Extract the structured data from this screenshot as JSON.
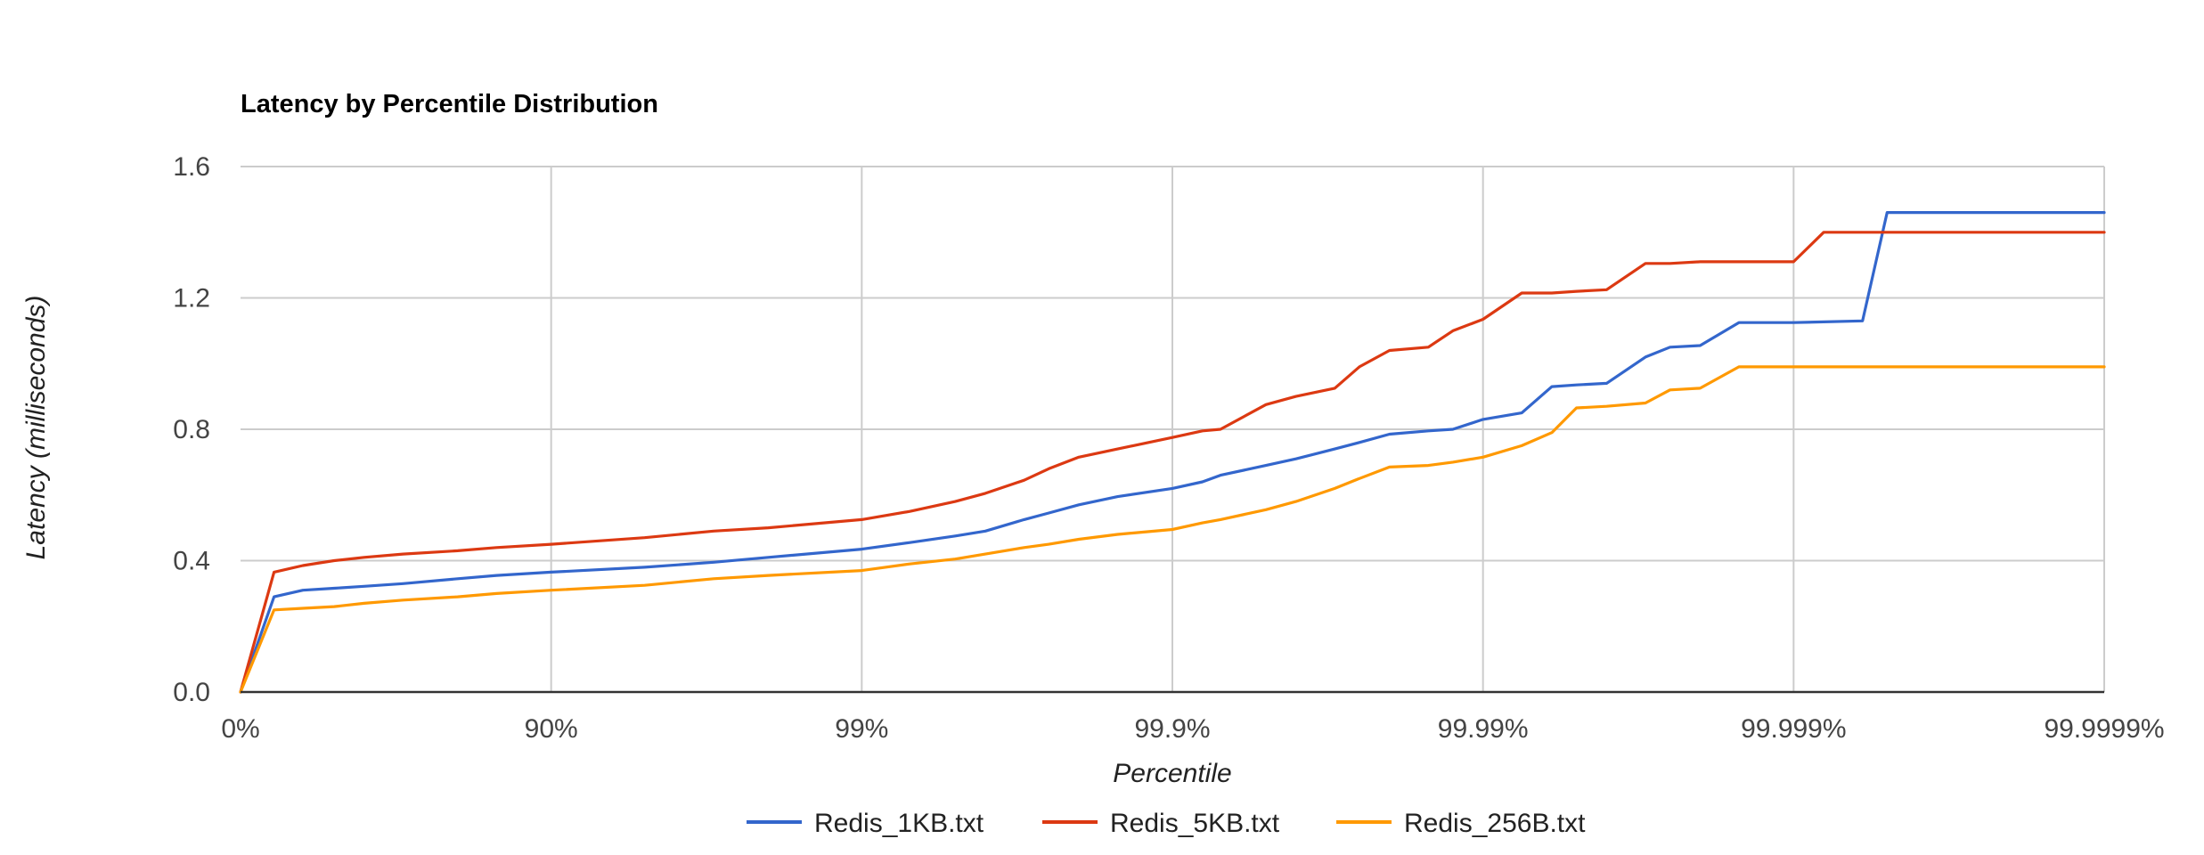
{
  "chart_data": {
    "type": "line",
    "title": "Latency by Percentile Distribution",
    "xlabel": "Percentile",
    "ylabel": "Latency (milliseconds)",
    "x_scale": "log-inverse-percentile",
    "x_ticks": [
      "0%",
      "90%",
      "99%",
      "99.9%",
      "99.99%",
      "99.999%",
      "99.9999%"
    ],
    "y_ticks": [
      "0.0",
      "0.4",
      "0.8",
      "1.2",
      "1.6"
    ],
    "ylim": [
      0,
      1.6
    ],
    "grid": true,
    "legend_position": "bottom",
    "series": [
      {
        "name": "Redis_1KB.txt",
        "color": "#3366cc",
        "points": [
          [
            "0%",
            0.0
          ],
          [
            "22%",
            0.29
          ],
          [
            "37%",
            0.31
          ],
          [
            "50%",
            0.316
          ],
          [
            "60%",
            0.322
          ],
          [
            "70%",
            0.33
          ],
          [
            "80%",
            0.345
          ],
          [
            "85%",
            0.355
          ],
          [
            "90%",
            0.365
          ],
          [
            "95%",
            0.38
          ],
          [
            "97%",
            0.395
          ],
          [
            "98%",
            0.41
          ],
          [
            "99%",
            0.435
          ],
          [
            "99.3%",
            0.455
          ],
          [
            "99.5%",
            0.475
          ],
          [
            "99.6%",
            0.49
          ],
          [
            "99.7%",
            0.525
          ],
          [
            "99.75%",
            0.545
          ],
          [
            "99.8%",
            0.57
          ],
          [
            "99.85%",
            0.595
          ],
          [
            "99.9%",
            0.62
          ],
          [
            "99.92%",
            0.64
          ],
          [
            "99.93%",
            0.66
          ],
          [
            "99.95%",
            0.69
          ],
          [
            "99.96%",
            0.71
          ],
          [
            "99.97%",
            0.74
          ],
          [
            "99.975%",
            0.76
          ],
          [
            "99.98%",
            0.785
          ],
          [
            "99.985%",
            0.795
          ],
          [
            "99.9875%",
            0.8
          ],
          [
            "99.99%",
            0.83
          ],
          [
            "99.9925%",
            0.85
          ],
          [
            "99.994%",
            0.93
          ],
          [
            "99.995%",
            0.935
          ],
          [
            "99.996%",
            0.94
          ],
          [
            "99.997%",
            1.02
          ],
          [
            "99.9975%",
            1.05
          ],
          [
            "99.998%",
            1.055
          ],
          [
            "99.9985%",
            1.125
          ],
          [
            "99.999%",
            1.125
          ],
          [
            "99.9994%",
            1.13
          ],
          [
            "99.9995%",
            1.46
          ],
          [
            "99.9999%",
            1.46
          ]
        ]
      },
      {
        "name": "Redis_5KB.txt",
        "color": "#dc3912",
        "points": [
          [
            "0%",
            0.0
          ],
          [
            "22%",
            0.365
          ],
          [
            "37%",
            0.385
          ],
          [
            "50%",
            0.4
          ],
          [
            "60%",
            0.41
          ],
          [
            "70%",
            0.42
          ],
          [
            "80%",
            0.43
          ],
          [
            "85%",
            0.44
          ],
          [
            "90%",
            0.45
          ],
          [
            "95%",
            0.47
          ],
          [
            "97%",
            0.49
          ],
          [
            "98%",
            0.5
          ],
          [
            "99%",
            0.525
          ],
          [
            "99.3%",
            0.55
          ],
          [
            "99.5%",
            0.58
          ],
          [
            "99.6%",
            0.605
          ],
          [
            "99.7%",
            0.645
          ],
          [
            "99.75%",
            0.68
          ],
          [
            "99.8%",
            0.715
          ],
          [
            "99.85%",
            0.74
          ],
          [
            "99.9%",
            0.775
          ],
          [
            "99.92%",
            0.795
          ],
          [
            "99.93%",
            0.8
          ],
          [
            "99.95%",
            0.875
          ],
          [
            "99.96%",
            0.9
          ],
          [
            "99.97%",
            0.925
          ],
          [
            "99.975%",
            0.99
          ],
          [
            "99.98%",
            1.04
          ],
          [
            "99.985%",
            1.05
          ],
          [
            "99.9875%",
            1.1
          ],
          [
            "99.99%",
            1.135
          ],
          [
            "99.9925%",
            1.215
          ],
          [
            "99.994%",
            1.215
          ],
          [
            "99.995%",
            1.22
          ],
          [
            "99.996%",
            1.225
          ],
          [
            "99.997%",
            1.305
          ],
          [
            "99.9975%",
            1.305
          ],
          [
            "99.998%",
            1.31
          ],
          [
            "99.9985%",
            1.31
          ],
          [
            "99.999%",
            1.31
          ],
          [
            "99.9992%",
            1.4
          ],
          [
            "99.9995%",
            1.4
          ],
          [
            "99.9999%",
            1.4
          ]
        ]
      },
      {
        "name": "Redis_256B.txt",
        "color": "#ff9900",
        "points": [
          [
            "0%",
            0.0
          ],
          [
            "22%",
            0.25
          ],
          [
            "37%",
            0.255
          ],
          [
            "50%",
            0.26
          ],
          [
            "60%",
            0.27
          ],
          [
            "70%",
            0.28
          ],
          [
            "80%",
            0.29
          ],
          [
            "85%",
            0.3
          ],
          [
            "90%",
            0.31
          ],
          [
            "95%",
            0.325
          ],
          [
            "97%",
            0.345
          ],
          [
            "98%",
            0.355
          ],
          [
            "99%",
            0.37
          ],
          [
            "99.3%",
            0.39
          ],
          [
            "99.5%",
            0.405
          ],
          [
            "99.6%",
            0.42
          ],
          [
            "99.7%",
            0.44
          ],
          [
            "99.75%",
            0.45
          ],
          [
            "99.8%",
            0.465
          ],
          [
            "99.85%",
            0.48
          ],
          [
            "99.9%",
            0.495
          ],
          [
            "99.92%",
            0.515
          ],
          [
            "99.93%",
            0.525
          ],
          [
            "99.95%",
            0.555
          ],
          [
            "99.96%",
            0.58
          ],
          [
            "99.97%",
            0.62
          ],
          [
            "99.975%",
            0.65
          ],
          [
            "99.98%",
            0.685
          ],
          [
            "99.985%",
            0.69
          ],
          [
            "99.9875%",
            0.7
          ],
          [
            "99.99%",
            0.715
          ],
          [
            "99.9925%",
            0.75
          ],
          [
            "99.994%",
            0.79
          ],
          [
            "99.995%",
            0.865
          ],
          [
            "99.996%",
            0.87
          ],
          [
            "99.997%",
            0.88
          ],
          [
            "99.9975%",
            0.92
          ],
          [
            "99.998%",
            0.925
          ],
          [
            "99.9985%",
            0.99
          ],
          [
            "99.999%",
            0.99
          ],
          [
            "99.9995%",
            0.99
          ],
          [
            "99.9999%",
            0.99
          ]
        ]
      }
    ]
  }
}
